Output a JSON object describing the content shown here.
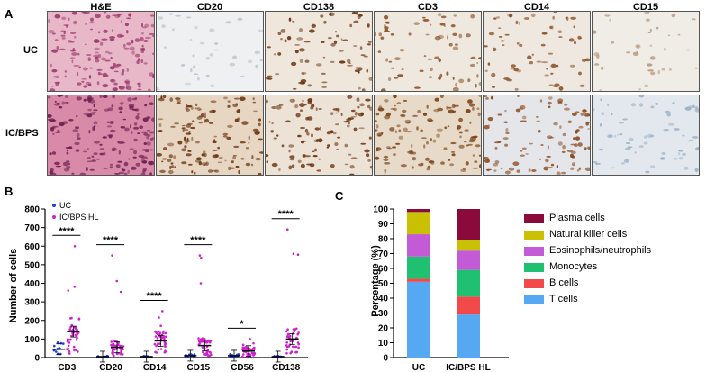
{
  "panel_labels": {
    "a": "A",
    "b": "B",
    "c": "C"
  },
  "panel_a": {
    "columns": [
      "H&E",
      "CD20",
      "CD138",
      "CD3",
      "CD14",
      "CD15"
    ],
    "rows": [
      "UC",
      "IC/BPS"
    ],
    "tiles": [
      {
        "row": 0,
        "col": 0,
        "bg": "#e8b8c8",
        "stain": "#9c3a6e",
        "density": 0.85
      },
      {
        "row": 0,
        "col": 1,
        "bg": "#eef0f1",
        "stain": "#b8c2ce",
        "density": 0.1
      },
      {
        "row": 0,
        "col": 2,
        "bg": "#efe6dc",
        "stain": "#6a3410",
        "density": 0.35
      },
      {
        "row": 0,
        "col": 3,
        "bg": "#efe8df",
        "stain": "#8a5228",
        "density": 0.3
      },
      {
        "row": 0,
        "col": 4,
        "bg": "#eee8e0",
        "stain": "#8a5228",
        "density": 0.28
      },
      {
        "row": 0,
        "col": 5,
        "bg": "#f0ece6",
        "stain": "#b89a80",
        "density": 0.1
      },
      {
        "row": 1,
        "col": 0,
        "bg": "#d88aa8",
        "stain": "#6a1e4e",
        "density": 0.95
      },
      {
        "row": 1,
        "col": 1,
        "bg": "#e6d6c2",
        "stain": "#6a3410",
        "density": 0.75
      },
      {
        "row": 1,
        "col": 2,
        "bg": "#ece2d6",
        "stain": "#6a3410",
        "density": 0.55
      },
      {
        "row": 1,
        "col": 3,
        "bg": "#e8dac8",
        "stain": "#7a4418",
        "density": 0.7
      },
      {
        "row": 1,
        "col": 4,
        "bg": "#e4e6ea",
        "stain": "#8a4a1c",
        "density": 0.5
      },
      {
        "row": 1,
        "col": 5,
        "bg": "#e2e8ee",
        "stain": "#9ab0c8",
        "density": 0.25
      }
    ]
  },
  "chart_data": [
    {
      "type": "scatter",
      "ylabel": "Number of cells",
      "categories": [
        "CD3",
        "CD20",
        "CD14",
        "CD15",
        "CD56",
        "CD138"
      ],
      "ylim": [
        0,
        800
      ],
      "yticks": [
        "0",
        "100",
        "200",
        "300",
        "400",
        "500",
        "600",
        "700",
        "800"
      ],
      "legend": {
        "position": "top-left",
        "entries": [
          "UC",
          "IC/BPS HL"
        ]
      },
      "series": [
        {
          "name": "UC",
          "color": "#1f3fd6",
          "means": [
            45,
            5,
            5,
            10,
            10,
            5
          ]
        },
        {
          "name": "IC/BPS HL",
          "color": "#cc22cc",
          "means": [
            140,
            55,
            90,
            65,
            35,
            100
          ],
          "max": [
            600,
            550,
            250,
            550,
            100,
            690
          ]
        }
      ],
      "significance": [
        "****",
        "****",
        "****",
        "****",
        "*",
        "****"
      ]
    },
    {
      "type": "bar",
      "stacked": true,
      "ylabel": "Percentage (%)",
      "categories": [
        "UC",
        "IC/BPS HL"
      ],
      "ylim": [
        0,
        100
      ],
      "yticks": [
        "0",
        "10",
        "20",
        "30",
        "40",
        "50",
        "60",
        "70",
        "80",
        "90",
        "100"
      ],
      "series": [
        {
          "name": "T cells",
          "color": "#56a8f2",
          "values": [
            51,
            29
          ]
        },
        {
          "name": "B cells",
          "color": "#f24a4a",
          "values": [
            2,
            12
          ]
        },
        {
          "name": "Monocytes",
          "color": "#1fc072",
          "values": [
            15,
            18
          ]
        },
        {
          "name": "Eosinophils/neutrophils",
          "color": "#c35ad6",
          "values": [
            15,
            13
          ]
        },
        {
          "name": "Natural killer cells",
          "color": "#c8c000",
          "values": [
            15,
            7
          ]
        },
        {
          "name": "Plasma cells",
          "color": "#8a0a3c",
          "values": [
            2,
            21
          ]
        }
      ]
    }
  ]
}
